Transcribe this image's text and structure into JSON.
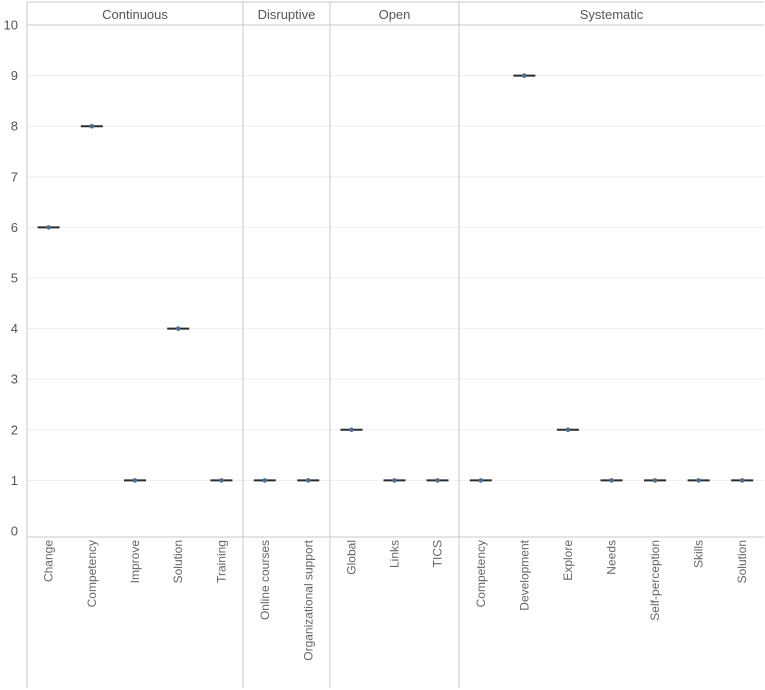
{
  "chart_data": {
    "type": "scatter",
    "title": "",
    "xlabel": "",
    "ylabel": "",
    "ylim": [
      0,
      10
    ],
    "yticks": [
      0,
      1,
      2,
      3,
      4,
      5,
      6,
      7,
      8,
      9,
      10
    ],
    "grid": "horizontal",
    "groups": [
      {
        "name": "Continuous",
        "categories": [
          "Change",
          "Competency",
          "Improve",
          "Solution",
          "Training"
        ],
        "values": [
          6,
          8,
          1,
          4,
          1
        ]
      },
      {
        "name": "Disruptive",
        "categories": [
          "Online courses",
          "Organizational support"
        ],
        "values": [
          1,
          1
        ]
      },
      {
        "name": "Open",
        "categories": [
          "Global",
          "Links",
          "TICS"
        ],
        "values": [
          2,
          1,
          1
        ]
      },
      {
        "name": "Systematic",
        "categories": [
          "Competency",
          "Development",
          "Explore",
          "Needs",
          "Self-perception",
          "Skills",
          "Solution"
        ],
        "values": [
          1,
          9,
          2,
          1,
          1,
          1,
          1
        ]
      }
    ],
    "colors": {
      "mark_line": "#2b2b2b",
      "mark_dot": "#4e6e8e",
      "grid": "#eeeeee",
      "divider": "#c8c8c8"
    }
  }
}
